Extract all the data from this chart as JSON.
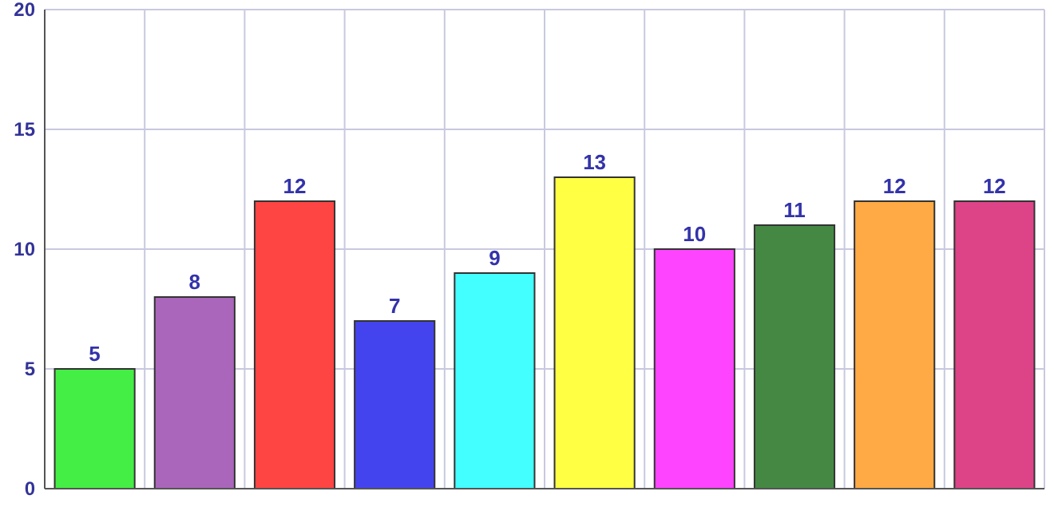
{
  "chart_data": {
    "type": "bar",
    "categories": [
      null,
      null,
      null,
      null,
      null,
      null,
      null,
      null,
      null,
      null
    ],
    "values": [
      5,
      8,
      12,
      7,
      9,
      13,
      10,
      11,
      12,
      12
    ],
    "colors": [
      "#44ee44",
      "#aa66bb",
      "#ff4444",
      "#4444ee",
      "#44ffff",
      "#ffff44",
      "#ff44ff",
      "#448844",
      "#ffaa44",
      "#dd4488"
    ],
    "ylim": [
      0,
      20
    ],
    "yticks": [
      0,
      5,
      10,
      15,
      20
    ],
    "grid": true,
    "data_labels": true
  }
}
